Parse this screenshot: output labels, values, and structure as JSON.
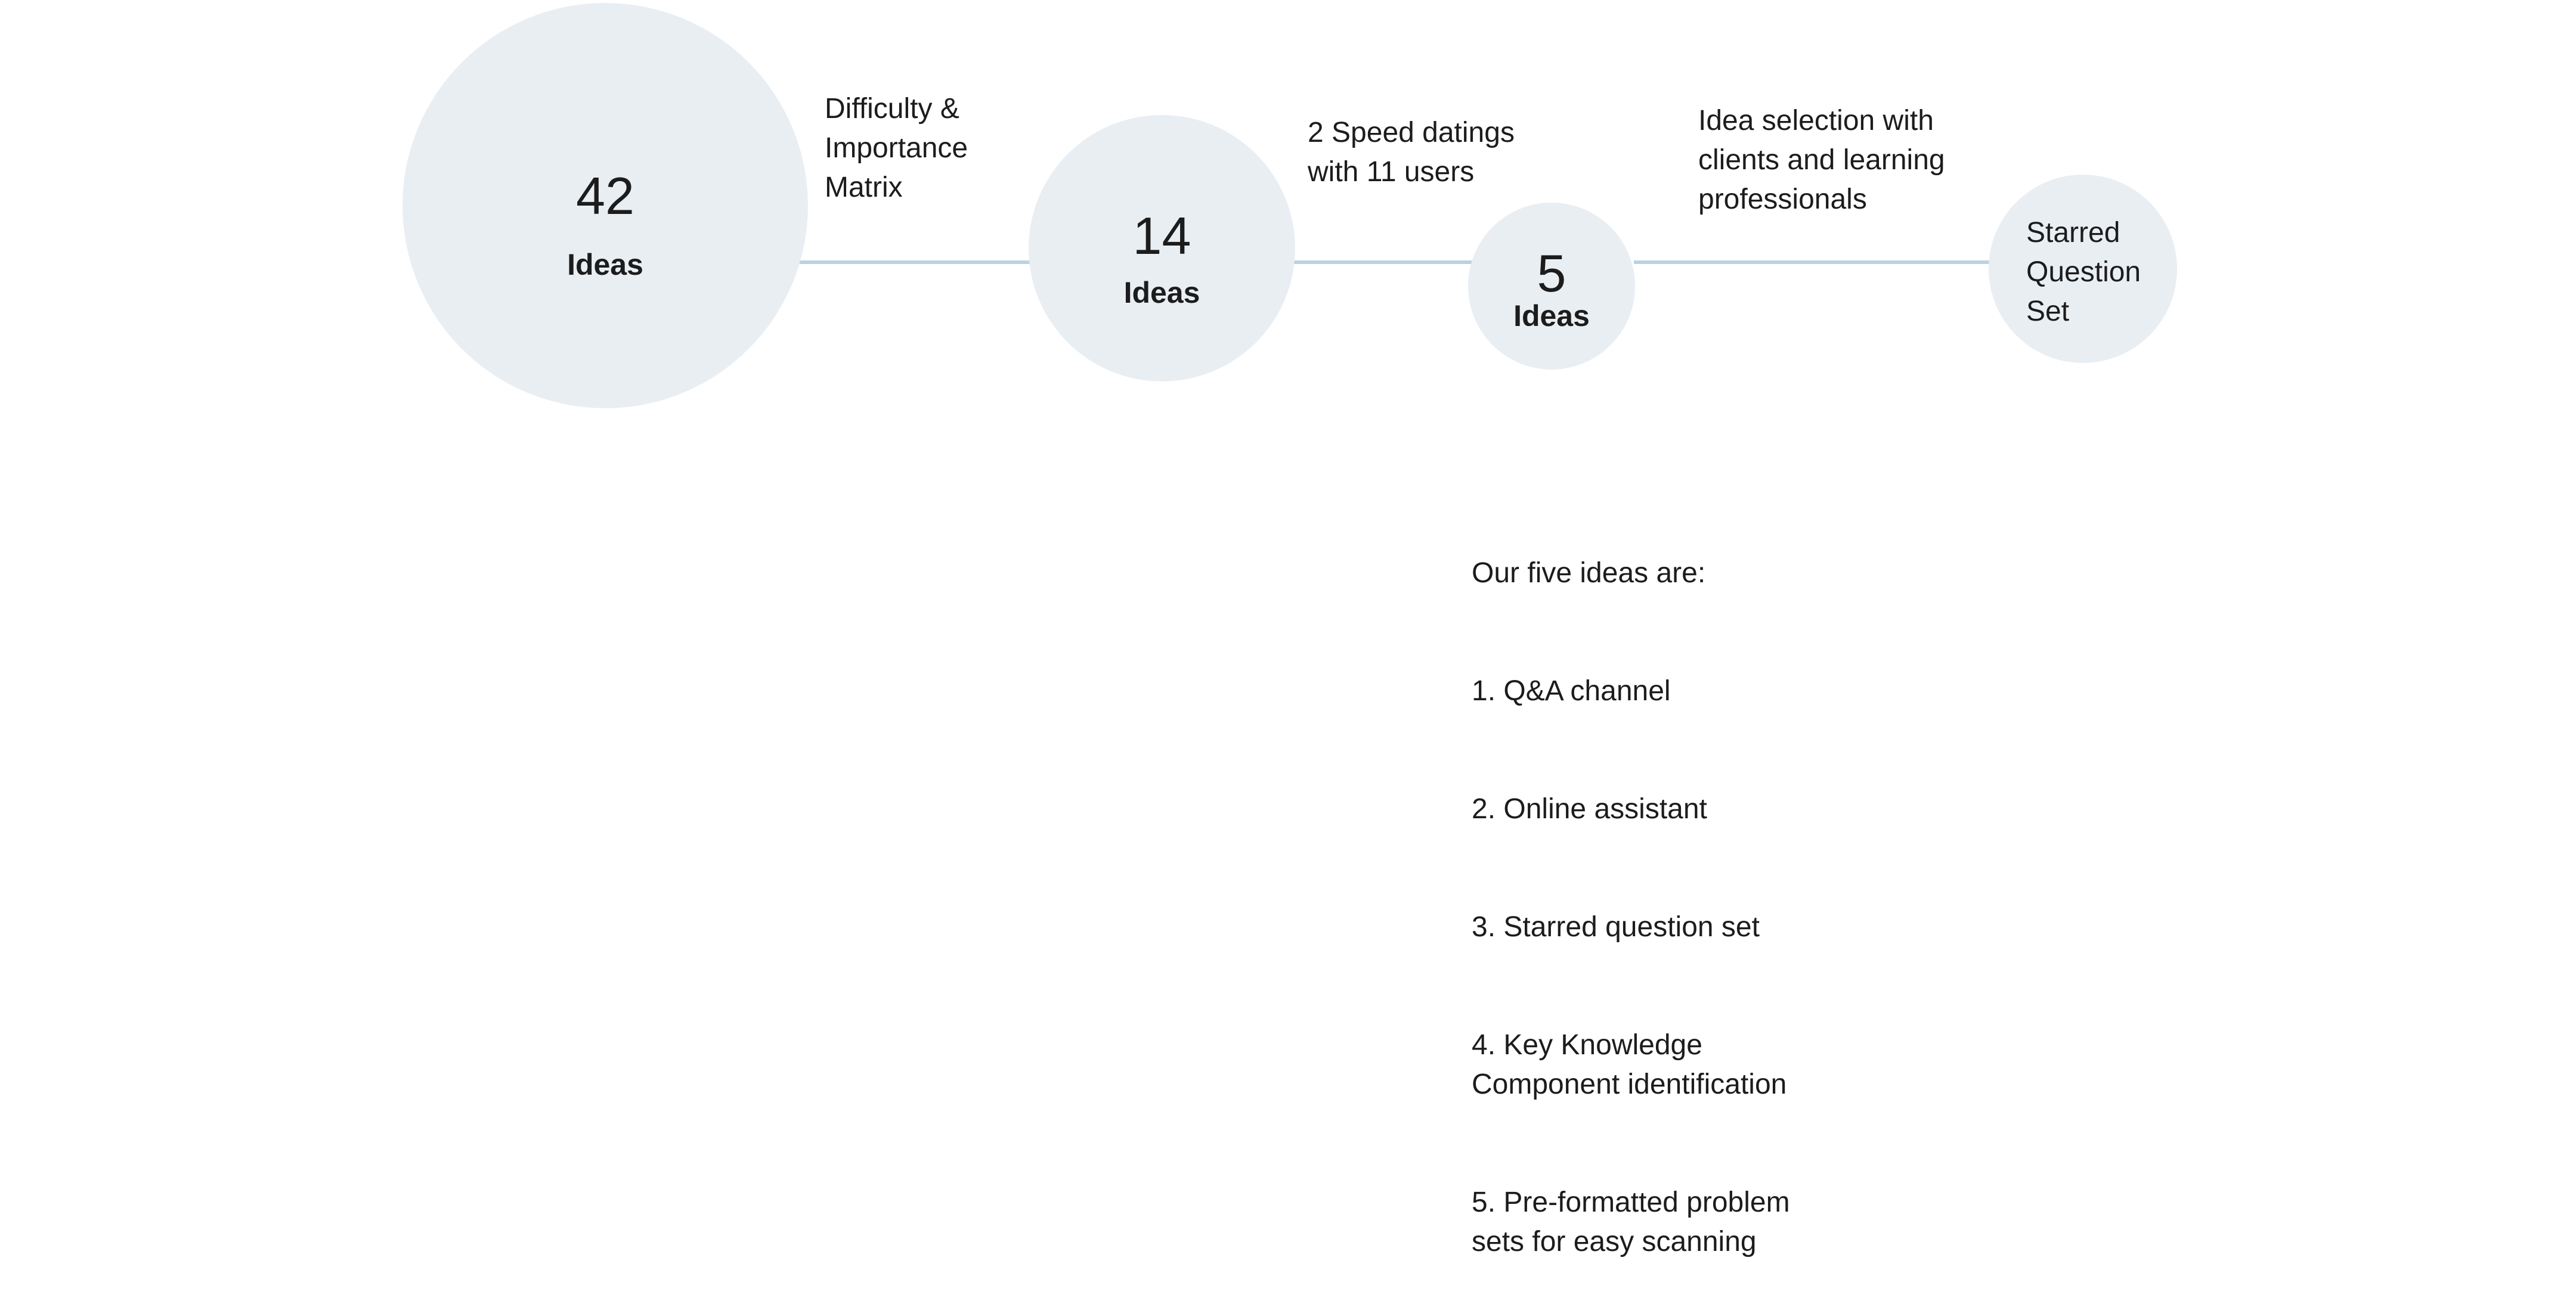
{
  "stages": [
    {
      "count": "42",
      "unit": "Ideas"
    },
    {
      "count": "14",
      "unit": "Ideas"
    },
    {
      "count": "5",
      "unit": "Ideas"
    },
    {
      "label": "Starred\nQuestion\nSet"
    }
  ],
  "transitions": [
    {
      "label": "Difficulty &\nImportance\nMatrix"
    },
    {
      "label": "2 Speed datings\nwith 11 users"
    },
    {
      "label": "Idea selection with\nclients and learning\nprofessionals"
    }
  ],
  "summary": {
    "heading": "Our five ideas are:",
    "items": [
      "1. Q&A channel",
      "2. Online assistant",
      "3. Starred question set",
      "4. Key Knowledge\nComponent identification",
      "5. Pre-formatted problem\nsets for easy scanning"
    ]
  }
}
